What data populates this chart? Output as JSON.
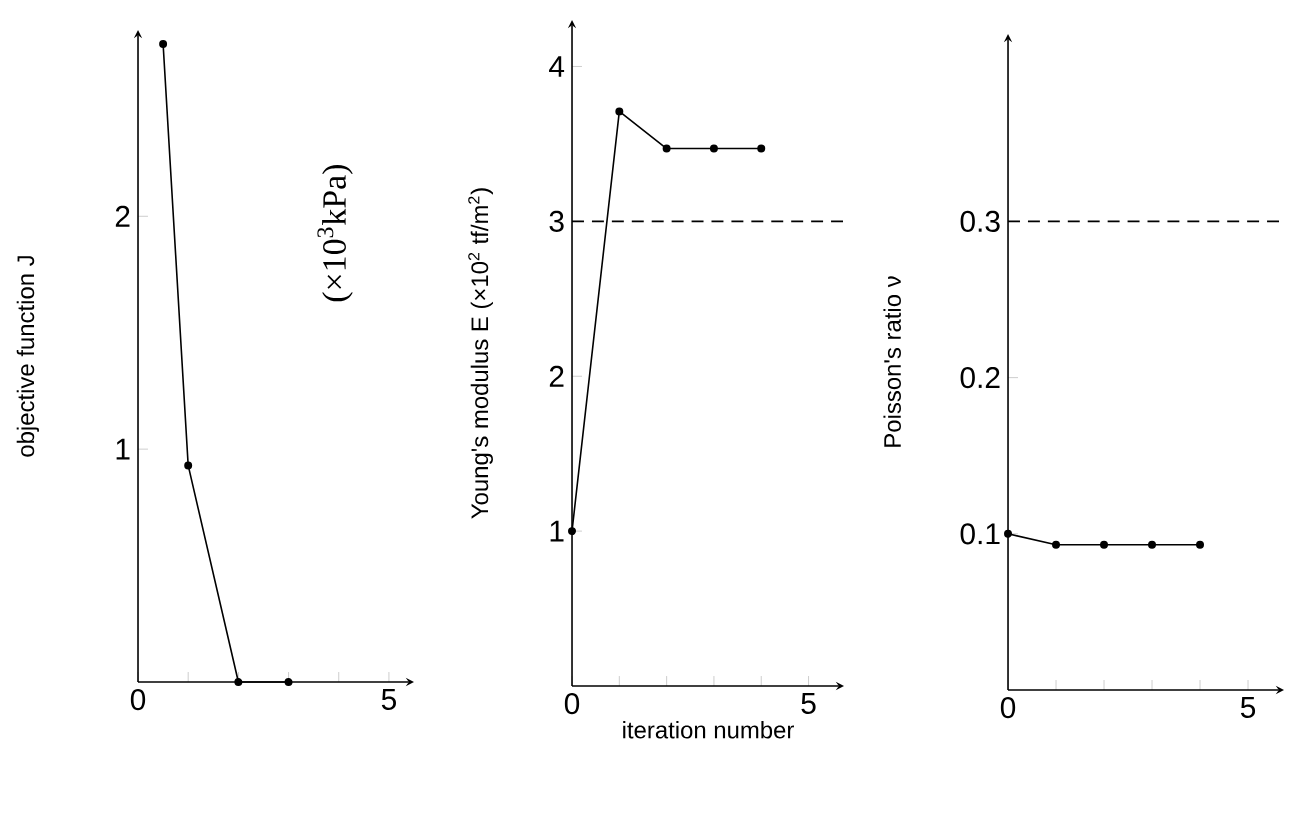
{
  "chart_data": [
    {
      "type": "line",
      "ylabel": "objective    function J",
      "x": [
        0.5,
        1,
        2,
        3
      ],
      "values": [
        2.74,
        0.93,
        0,
        0
      ],
      "color": "#000000",
      "marker": "circle",
      "line_style": "solid",
      "xlim": [
        0,
        5.5
      ],
      "ylim": [
        0,
        2.8
      ],
      "xticks": [
        0,
        {
          "value": 1,
          "label": null
        },
        {
          "value": 2,
          "label": null
        },
        {
          "value": 3,
          "label": null
        },
        {
          "value": 4,
          "label": null
        },
        5
      ],
      "yticks": [
        1,
        2
      ]
    },
    {
      "type": "line",
      "ylabel": "Young's    modulus E (×10$^{2}$ tf/m$^{2}$)",
      "xlabel": "iteration    number",
      "annotations": [
        "(×10$^{3}$kPa)"
      ],
      "x": [
        0,
        1,
        2,
        3,
        4
      ],
      "values": [
        1.0,
        3.71,
        3.47,
        3.47,
        3.47
      ],
      "color": "#000000",
      "marker": "circle",
      "line_style": "solid",
      "xlim": [
        0,
        5.75
      ],
      "ylim": [
        0,
        4.3
      ],
      "xticks": [
        0,
        {
          "value": 1,
          "label": null
        },
        {
          "value": 2,
          "label": null
        },
        {
          "value": 3,
          "label": null
        },
        {
          "value": 4,
          "label": null
        },
        5
      ],
      "yticks": [
        1,
        2,
        3,
        4
      ],
      "ref_lines": [
        {
          "axis": "y",
          "value": 3,
          "color": "#000000",
          "line_style": "dashed"
        }
      ]
    },
    {
      "type": "line",
      "ylabel": "Poisson's    ratio  ν",
      "x": [
        0,
        1,
        2,
        3,
        4
      ],
      "values": [
        0.1,
        0.093,
        0.093,
        0.093,
        0.093
      ],
      "color": "#000000",
      "marker": "circle",
      "line_style": "solid",
      "xlim": [
        0,
        5.75
      ],
      "ylim": [
        0,
        0.42
      ],
      "xticks": [
        0,
        {
          "value": 1,
          "label": null
        },
        {
          "value": 2,
          "label": null
        },
        {
          "value": 3,
          "label": null
        },
        {
          "value": 4,
          "label": null
        },
        5
      ],
      "yticks": [
        0.1,
        0.2,
        0.3
      ],
      "ref_lines": [
        {
          "axis": "y",
          "value": 0.3,
          "color": "#000000",
          "line_style": "dashed"
        }
      ]
    }
  ]
}
